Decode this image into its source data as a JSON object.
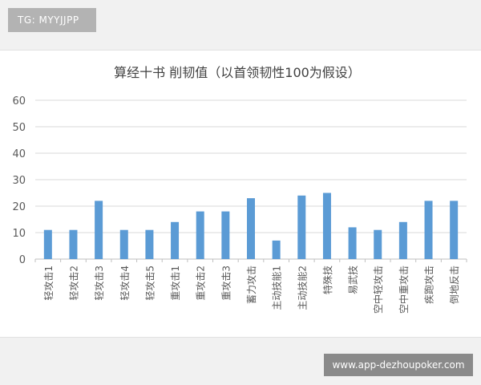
{
  "tag": {
    "text": "TG: MYYJJPP"
  },
  "watermark": {
    "text": "www.app-dezhoupoker.com"
  },
  "colors": {
    "bar": "#5b9bd5",
    "grid": "#d9d9d9",
    "axis": "#bfbfbf",
    "text": "#595959",
    "title": "#404040"
  },
  "chart_data": {
    "type": "bar",
    "title": "算经十书 削韧值（以首领韧性100为假设）",
    "xlabel": "",
    "ylabel": "",
    "ylim": [
      0,
      60
    ],
    "yticks": [
      0,
      10,
      20,
      30,
      40,
      50,
      60
    ],
    "grid": true,
    "legend": "none",
    "categories": [
      "轻攻击1",
      "轻攻击2",
      "轻攻击3",
      "轻攻击4",
      "轻攻击5",
      "重攻击1",
      "重攻击2",
      "重攻击3",
      "蓄力攻击",
      "主动技能1",
      "主动技能2",
      "特殊技",
      "易武技",
      "空中轻攻击",
      "空中重攻击",
      "疾跑攻击",
      "倒地反击"
    ],
    "values": [
      11,
      11,
      22,
      11,
      11,
      14,
      18,
      18,
      23,
      7,
      24,
      25,
      12,
      11,
      14,
      22,
      22
    ]
  }
}
